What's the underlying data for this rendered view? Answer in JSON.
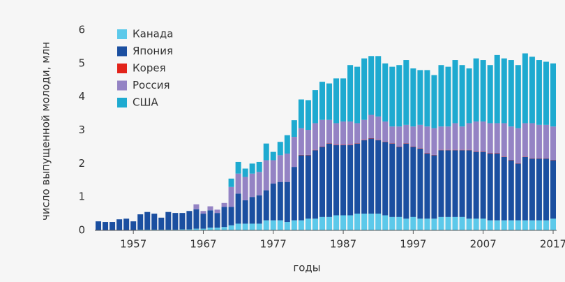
{
  "chart_data": {
    "type": "stacked_bar",
    "y_label": "число выпущенной молоди, млн",
    "x_label": "годы",
    "x": [
      1952,
      1953,
      1954,
      1955,
      1956,
      1957,
      1958,
      1959,
      1960,
      1961,
      1962,
      1963,
      1964,
      1965,
      1966,
      1967,
      1968,
      1969,
      1970,
      1971,
      1972,
      1973,
      1974,
      1975,
      1976,
      1977,
      1978,
      1979,
      1980,
      1981,
      1982,
      1983,
      1984,
      1985,
      1986,
      1987,
      1988,
      1989,
      1990,
      1991,
      1992,
      1993,
      1994,
      1995,
      1996,
      1997,
      1998,
      1999,
      2000,
      2001,
      2002,
      2003,
      2004,
      2005,
      2006,
      2007,
      2008,
      2009,
      2010,
      2011,
      2012,
      2013,
      2014,
      2015,
      2016,
      2017
    ],
    "xlim": [
      1951.5,
      2017.5
    ],
    "xticks": [
      1957,
      1967,
      1977,
      1987,
      1997,
      2007,
      2017
    ],
    "ylim": [
      0,
      6
    ],
    "yticks": [
      0,
      1,
      2,
      3,
      4,
      5,
      6
    ],
    "legend": "top-left",
    "series": [
      {
        "name": "Канада",
        "color": "#5cc9ea",
        "values": [
          0,
          0,
          0,
          0,
          0,
          0,
          0.02,
          0.02,
          0.02,
          0.02,
          0.02,
          0.02,
          0.03,
          0.03,
          0.05,
          0.05,
          0.08,
          0.08,
          0.1,
          0.15,
          0.2,
          0.2,
          0.2,
          0.2,
          0.3,
          0.3,
          0.3,
          0.25,
          0.3,
          0.3,
          0.35,
          0.35,
          0.4,
          0.4,
          0.45,
          0.45,
          0.45,
          0.5,
          0.5,
          0.5,
          0.5,
          0.45,
          0.4,
          0.4,
          0.35,
          0.4,
          0.35,
          0.35,
          0.35,
          0.4,
          0.4,
          0.4,
          0.4,
          0.35,
          0.35,
          0.35,
          0.3,
          0.3,
          0.3,
          0.3,
          0.3,
          0.3,
          0.3,
          0.3,
          0.3,
          0.35
        ]
      },
      {
        "name": "Япония",
        "color": "#1b4fa0",
        "values": [
          0.27,
          0.25,
          0.25,
          0.33,
          0.35,
          0.27,
          0.46,
          0.53,
          0.48,
          0.36,
          0.53,
          0.5,
          0.49,
          0.55,
          0.58,
          0.45,
          0.52,
          0.44,
          0.6,
          0.55,
          0.9,
          0.7,
          0.8,
          0.85,
          0.9,
          1.1,
          1.15,
          1.2,
          1.6,
          1.95,
          1.9,
          2.05,
          2.1,
          2.2,
          2.1,
          2.1,
          2.1,
          2.1,
          2.2,
          2.25,
          2.2,
          2.2,
          2.2,
          2.1,
          2.25,
          2.1,
          2.1,
          1.95,
          1.9,
          2.0,
          2.0,
          2.0,
          2.0,
          2.05,
          2.0,
          2.0,
          2.0,
          2.0,
          1.9,
          1.8,
          1.7,
          1.9,
          1.85,
          1.85,
          1.85,
          1.75
        ]
      },
      {
        "name": "Корея",
        "color": "#e2231a",
        "values": [
          0,
          0,
          0,
          0,
          0,
          0,
          0,
          0,
          0,
          0,
          0,
          0,
          0,
          0,
          0,
          0,
          0,
          0,
          0,
          0,
          0,
          0,
          0,
          0,
          0,
          0,
          0,
          0,
          0,
          0.01,
          0.01,
          0.01,
          0.01,
          0.01,
          0.01,
          0.01,
          0.01,
          0.01,
          0.01,
          0.01,
          0.01,
          0.01,
          0.01,
          0.01,
          0.01,
          0.01,
          0.01,
          0.01,
          0.01,
          0.01,
          0.01,
          0.01,
          0.01,
          0.01,
          0.01,
          0.01,
          0.01,
          0.01,
          0.01,
          0.01,
          0.01,
          0.01,
          0.01,
          0.01,
          0.01,
          0.01
        ]
      },
      {
        "name": "Россия",
        "color": "#9483c4",
        "values": [
          0,
          0,
          0,
          0,
          0,
          0,
          0,
          0,
          0,
          0,
          0,
          0,
          0,
          0,
          0.15,
          0.08,
          0.12,
          0.1,
          0.12,
          0.6,
          0.6,
          0.7,
          0.7,
          0.7,
          0.9,
          0.7,
          0.8,
          0.85,
          0.9,
          0.8,
          0.75,
          0.8,
          0.8,
          0.7,
          0.65,
          0.7,
          0.7,
          0.6,
          0.6,
          0.7,
          0.7,
          0.6,
          0.5,
          0.6,
          0.55,
          0.6,
          0.7,
          0.8,
          0.8,
          0.7,
          0.7,
          0.8,
          0.7,
          0.8,
          0.9,
          0.9,
          0.9,
          0.9,
          1.0,
          1.0,
          1.05,
          1.0,
          1.05,
          1.0,
          1.0,
          1.0
        ]
      },
      {
        "name": "США",
        "color": "#1eaad0",
        "values": [
          0,
          0,
          0,
          0,
          0,
          0,
          0,
          0,
          0,
          0,
          0,
          0,
          0,
          0,
          0,
          0,
          0,
          0,
          0,
          0.25,
          0.35,
          0.25,
          0.3,
          0.3,
          0.5,
          0.25,
          0.4,
          0.55,
          0.5,
          0.86,
          0.89,
          0.99,
          1.14,
          1.09,
          1.34,
          1.29,
          1.69,
          1.69,
          1.84,
          1.76,
          1.81,
          1.74,
          1.79,
          1.84,
          1.94,
          1.74,
          1.64,
          1.69,
          1.59,
          1.84,
          1.79,
          1.89,
          1.84,
          1.64,
          1.89,
          1.84,
          1.74,
          2.04,
          1.94,
          1.99,
          1.89,
          2.09,
          1.99,
          1.94,
          1.89,
          1.89
        ]
      }
    ]
  }
}
